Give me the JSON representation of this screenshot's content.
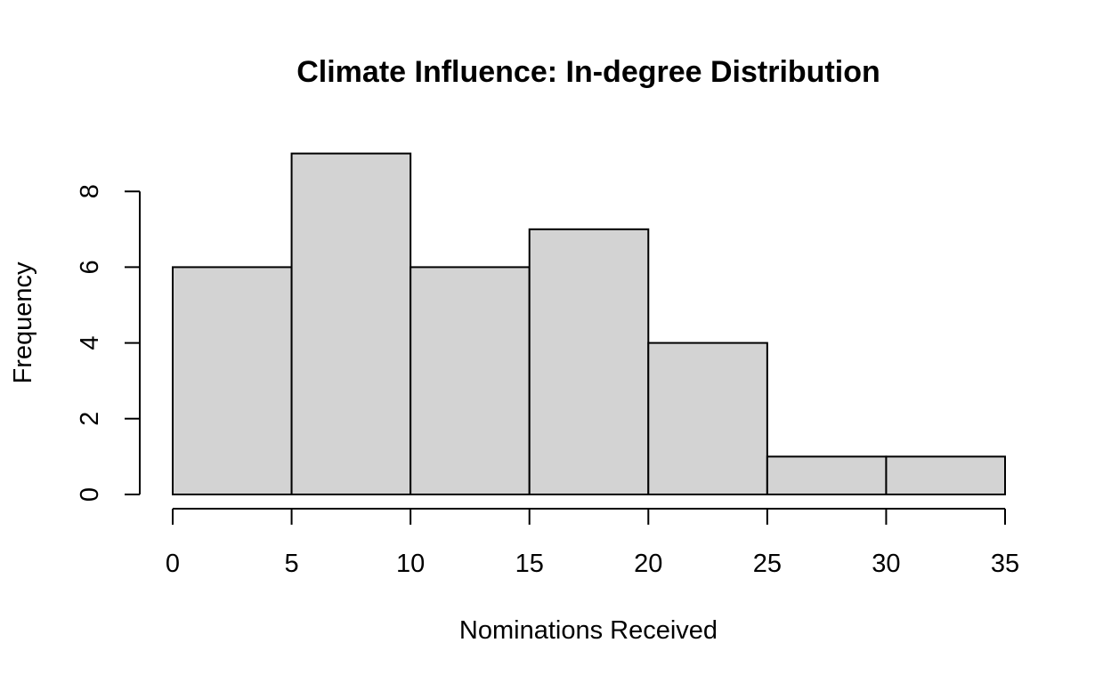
{
  "chart_data": {
    "type": "bar",
    "title": "Climate Influence: In-degree Distribution",
    "xlabel": "Nominations Received",
    "ylabel": "Frequency",
    "bins": [
      {
        "start": 0,
        "end": 5,
        "count": 6
      },
      {
        "start": 5,
        "end": 10,
        "count": 9
      },
      {
        "start": 10,
        "end": 15,
        "count": 6
      },
      {
        "start": 15,
        "end": 20,
        "count": 7
      },
      {
        "start": 20,
        "end": 25,
        "count": 4
      },
      {
        "start": 25,
        "end": 30,
        "count": 1
      },
      {
        "start": 30,
        "end": 35,
        "count": 1
      }
    ],
    "xlim": [
      0,
      35
    ],
    "ylim": [
      0,
      9
    ],
    "x_ticks": [
      "0",
      "5",
      "10",
      "15",
      "20",
      "25",
      "30",
      "35"
    ],
    "y_ticks": [
      "0",
      "2",
      "4",
      "6",
      "8"
    ],
    "grid": false,
    "legend": "none",
    "bar_fill": "#d3d3d3",
    "bar_stroke": "#000000"
  }
}
